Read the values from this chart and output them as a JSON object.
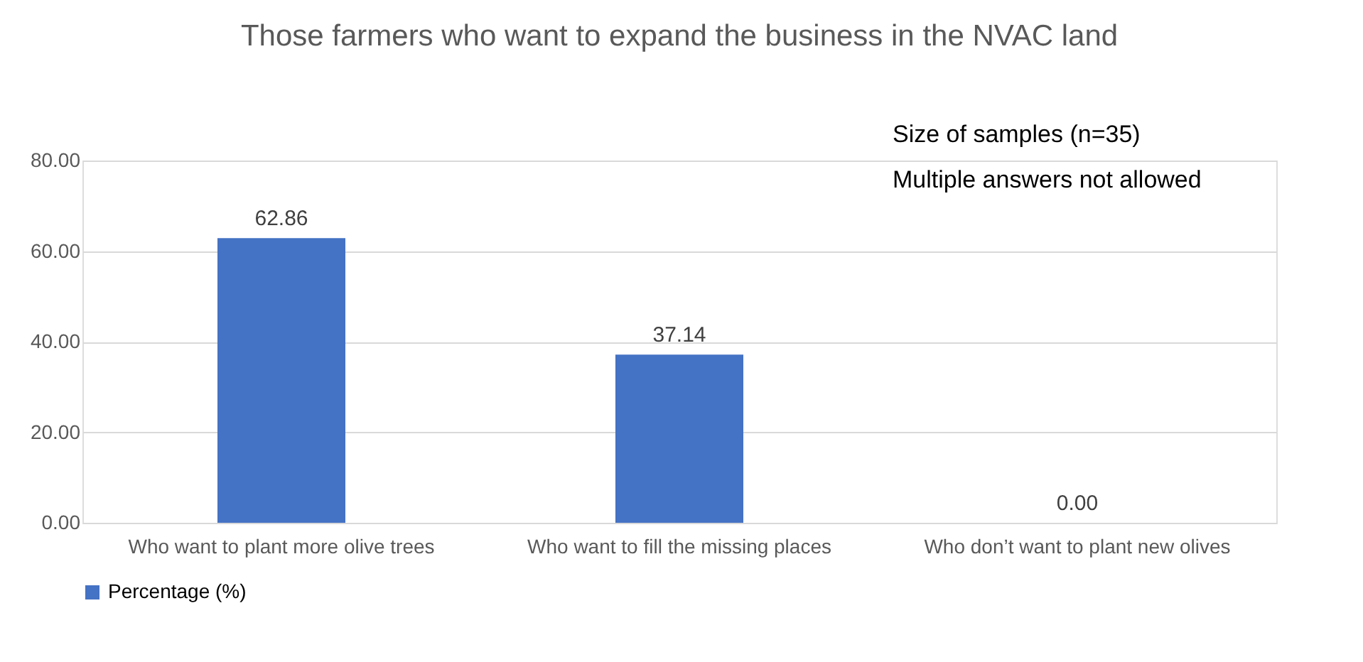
{
  "chart_data": {
    "type": "bar",
    "title": "Those farmers who want to expand the business in the NVAC land",
    "categories": [
      "Who want to plant more olive trees",
      "Who want to fill the missing places",
      "Who don’t want to plant new olives"
    ],
    "series": [
      {
        "name": "Percentage (%)",
        "color": "#4472c4",
        "values": [
          62.86,
          37.14,
          0.0
        ],
        "value_labels": [
          "62.86",
          "37.14",
          "0.00"
        ]
      }
    ],
    "ylim": [
      0,
      80
    ],
    "yticks": [
      {
        "value": 0,
        "label": "0.00"
      },
      {
        "value": 20,
        "label": "20.00"
      },
      {
        "value": 40,
        "label": "40.00"
      },
      {
        "value": 60,
        "label": "60.00"
      },
      {
        "value": 80,
        "label": "80.00"
      }
    ],
    "grid": "y",
    "legend": "bottom",
    "annotations": [
      "Size of samples (n=35)",
      "Multiple answers not allowed"
    ]
  }
}
